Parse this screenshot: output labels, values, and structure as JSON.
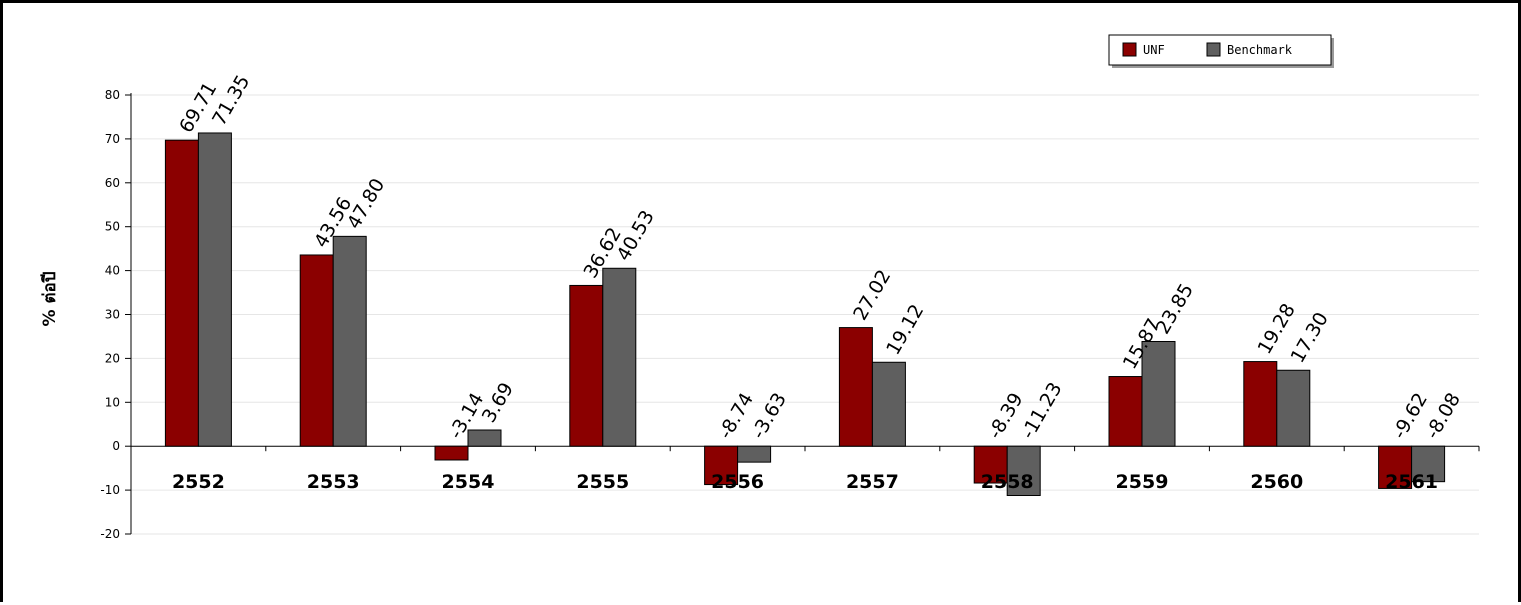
{
  "chart_data": {
    "type": "bar",
    "title": "",
    "xlabel": "",
    "ylabel": "% ต่อปี",
    "ylim": [
      -20,
      80
    ],
    "yticks": [
      -20,
      -10,
      0,
      10,
      20,
      30,
      40,
      50,
      60,
      70,
      80
    ],
    "grid": true,
    "legend_position": "top-right",
    "categories": [
      "2552",
      "2553",
      "2554",
      "2555",
      "2556",
      "2557",
      "2558",
      "2559",
      "2560",
      "2561"
    ],
    "series": [
      {
        "name": "UNF",
        "color": "#8b0000",
        "values": [
          69.71,
          43.56,
          -3.14,
          36.62,
          -8.74,
          27.02,
          -8.39,
          15.87,
          19.28,
          -9.62
        ],
        "labels": [
          "69.71",
          "43.56",
          "-3.14",
          "36.62",
          "-8.74",
          "27.02",
          "-8.39",
          "15.87",
          "19.28",
          "-9.62"
        ]
      },
      {
        "name": "Benchmark",
        "color": "#5f5f5f",
        "values": [
          71.35,
          47.8,
          3.69,
          40.53,
          -3.63,
          19.12,
          -11.23,
          23.85,
          17.3,
          -8.08
        ],
        "labels": [
          "71.35",
          "47.80",
          "3.69",
          "40.53",
          "-3.63",
          "19.12",
          "-11.23",
          "23.85",
          "17.30",
          "-8.08"
        ]
      }
    ]
  }
}
